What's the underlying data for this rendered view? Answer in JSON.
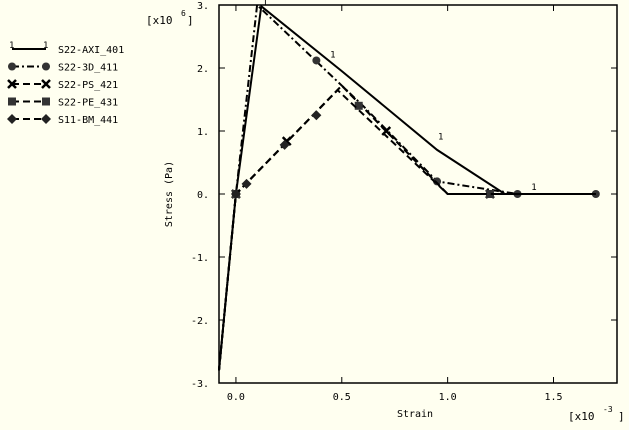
{
  "chart_data": {
    "type": "line",
    "xlabel": "Strain",
    "ylabel": "Stress (Pa)",
    "x_multiplier": "[x10 -3 ]",
    "y_multiplier": "[x10 6 ]",
    "xlim": [
      -0.08,
      1.8
    ],
    "ylim": [
      -3,
      3
    ],
    "x_ticks": [
      0.0,
      0.5,
      1.0,
      1.5
    ],
    "x_tick_labels": [
      "0.0",
      "0.5",
      "1.0",
      "1.5"
    ],
    "y_ticks": [
      -3,
      -2,
      -1,
      0,
      1,
      2,
      3
    ],
    "y_tick_labels": [
      "-3.",
      "-2.",
      "-1.",
      "0.",
      "1.",
      "2.",
      "3."
    ],
    "grid": false,
    "legend_position": "left",
    "series": [
      {
        "name": "S22-AXI_401",
        "marker": "1",
        "dash": "solid",
        "x": [
          -0.08,
          0.0,
          0.12,
          0.5,
          0.95,
          1.27,
          1.7
        ],
        "y": [
          -2.8,
          0.0,
          2.98,
          1.95,
          0.7,
          0.0,
          0.0
        ],
        "markers_x": [
          0.12,
          0.44,
          0.95,
          1.39
        ],
        "markers_y": [
          2.98,
          2.15,
          0.85,
          0.05
        ]
      },
      {
        "name": "S22-3D_411",
        "marker": "circle",
        "dash": "dashdot",
        "x": [
          -0.08,
          0.0,
          0.1,
          0.6,
          0.95,
          1.33,
          1.7
        ],
        "y": [
          -2.8,
          0.0,
          3.0,
          1.4,
          0.2,
          0.0,
          0.0
        ],
        "markers_x": [
          0.0,
          0.38,
          0.95,
          1.33,
          1.7
        ],
        "markers_y": [
          0.0,
          2.12,
          0.2,
          0.0,
          0.0
        ]
      },
      {
        "name": "S22-PS_421",
        "marker": "x",
        "dash": "dash",
        "x": [
          -0.08,
          0.0,
          0.5,
          1.0,
          1.7
        ],
        "y": [
          -2.8,
          0.0,
          1.72,
          0.0,
          0.0
        ],
        "markers_x": [
          0.0,
          0.24,
          0.71,
          1.2
        ],
        "markers_y": [
          0.0,
          0.84,
          1.0,
          0.0
        ]
      },
      {
        "name": "S22-PE_431",
        "marker": "square",
        "dash": "dash",
        "x": [
          -0.08,
          0.0,
          0.5,
          1.0,
          1.7
        ],
        "y": [
          -2.8,
          0.0,
          1.72,
          0.0,
          0.0
        ],
        "markers_x": [
          0.0,
          0.58,
          1.2
        ],
        "markers_y": [
          0.0,
          1.4,
          0.0
        ]
      },
      {
        "name": "S11-BM_441",
        "marker": "diamond",
        "dash": "dash",
        "x": [
          -0.08,
          0.0,
          0.48,
          1.0,
          1.7
        ],
        "y": [
          -2.8,
          0.0,
          1.65,
          0.0,
          0.0
        ],
        "markers_x": [
          0.0,
          0.05,
          0.23,
          0.38
        ],
        "markers_y": [
          0.0,
          0.16,
          0.78,
          1.25
        ]
      }
    ]
  }
}
